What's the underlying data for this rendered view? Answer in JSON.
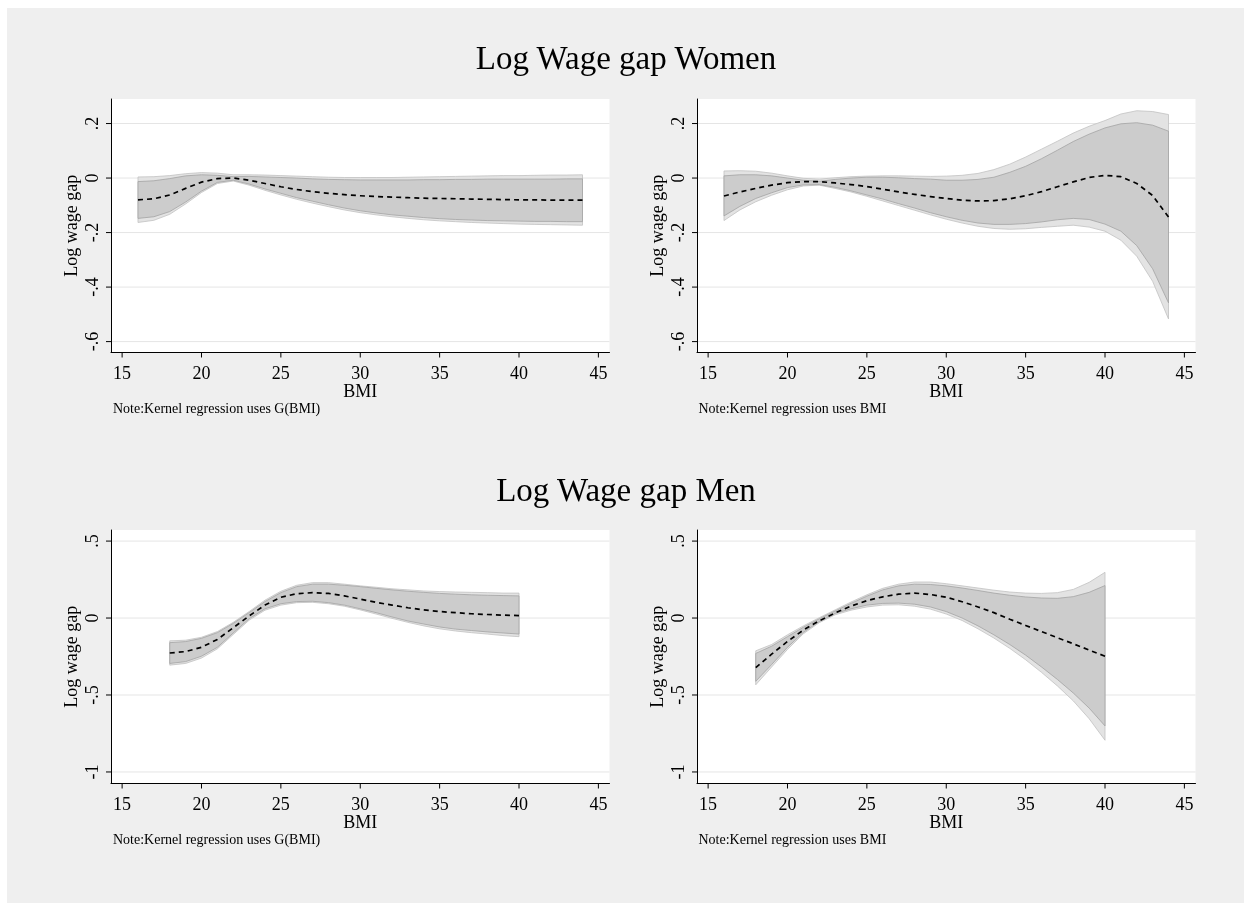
{
  "chart_data": [
    {
      "type": "line",
      "title": "Log Wage gap Women",
      "xlabel": "BMI",
      "ylabel": "Log wage gap",
      "annotations": [
        "Note:Kernel regression uses G(BMI)"
      ],
      "grid": "y",
      "line_style": "dashed",
      "xlim": [
        14.3,
        45.7
      ],
      "xticks": [
        15,
        20,
        25,
        30,
        35,
        40,
        45
      ],
      "ylim": [
        -0.64,
        0.29
      ],
      "yticks": [
        {
          "value": -0.6,
          "label": "-.6"
        },
        {
          "value": -0.4,
          "label": "-.4"
        },
        {
          "value": -0.2,
          "label": "-.2"
        },
        {
          "value": 0,
          "label": "0"
        },
        {
          "value": 0.2,
          "label": ".2"
        }
      ],
      "x": [
        16,
        17,
        18,
        19,
        20,
        21,
        22,
        23,
        24,
        25,
        26,
        27,
        28,
        29,
        30,
        31,
        32,
        33,
        34,
        35,
        36,
        37,
        38,
        39,
        40,
        41,
        42,
        43,
        44
      ],
      "series": [
        {
          "color": "#000000",
          "values": [
            -0.08,
            -0.076,
            -0.062,
            -0.038,
            -0.015,
            -0.002,
            0.0,
            -0.008,
            -0.02,
            -0.032,
            -0.042,
            -0.05,
            -0.056,
            -0.061,
            -0.065,
            -0.068,
            -0.07,
            -0.072,
            -0.074,
            -0.075,
            -0.076,
            -0.077,
            -0.078,
            -0.079,
            -0.08,
            -0.08,
            -0.081,
            -0.081,
            -0.081
          ],
          "lower": [
            -0.163,
            -0.155,
            -0.133,
            -0.095,
            -0.053,
            -0.02,
            -0.011,
            -0.026,
            -0.045,
            -0.062,
            -0.078,
            -0.092,
            -0.105,
            -0.117,
            -0.127,
            -0.135,
            -0.142,
            -0.148,
            -0.153,
            -0.157,
            -0.16,
            -0.163,
            -0.165,
            -0.167,
            -0.169,
            -0.17,
            -0.171,
            -0.172,
            -0.173
          ],
          "upper": [
            0.004,
            0.005,
            0.009,
            0.016,
            0.02,
            0.018,
            0.012,
            0.012,
            0.011,
            0.009,
            0.007,
            0.005,
            0.003,
            0.002,
            0.002,
            0.002,
            0.002,
            0.003,
            0.004,
            0.005,
            0.006,
            0.007,
            0.008,
            0.009,
            0.009,
            0.01,
            0.011,
            0.011,
            0.012
          ]
        },
        {
          "color": "#cccccc",
          "values": [
            null,
            null,
            null,
            null,
            null,
            null,
            null,
            null,
            null,
            null,
            null,
            null,
            null,
            null,
            null,
            null,
            null,
            null,
            null,
            null,
            null,
            null,
            null,
            null,
            null,
            null,
            null,
            null,
            null
          ],
          "lower": [
            -0.148,
            -0.142,
            -0.123,
            -0.088,
            -0.048,
            -0.016,
            -0.008,
            -0.022,
            -0.04,
            -0.056,
            -0.072,
            -0.085,
            -0.098,
            -0.11,
            -0.12,
            -0.128,
            -0.135,
            -0.14,
            -0.145,
            -0.149,
            -0.152,
            -0.154,
            -0.156,
            -0.157,
            -0.158,
            -0.159,
            -0.159,
            -0.16,
            -0.16
          ],
          "upper": [
            -0.013,
            -0.01,
            -0.002,
            0.008,
            0.012,
            0.01,
            0.005,
            0.006,
            0.004,
            0.002,
            0.0,
            -0.003,
            -0.005,
            -0.006,
            -0.007,
            -0.007,
            -0.007,
            -0.007,
            -0.006,
            -0.006,
            -0.005,
            -0.005,
            -0.004,
            -0.004,
            -0.004,
            -0.004,
            -0.004,
            -0.003,
            -0.003
          ]
        }
      ]
    },
    {
      "type": "line",
      "xlabel": "BMI",
      "ylabel": "Log wage gap",
      "annotations": [
        "Note:Kernel regression uses BMI"
      ],
      "grid": "y",
      "line_style": "dashed",
      "xlim": [
        14.3,
        45.7
      ],
      "xticks": [
        15,
        20,
        25,
        30,
        35,
        40,
        45
      ],
      "ylim": [
        -0.64,
        0.29
      ],
      "yticks": [
        {
          "value": -0.6,
          "label": "-.6"
        },
        {
          "value": -0.4,
          "label": "-.4"
        },
        {
          "value": -0.2,
          "label": "-.2"
        },
        {
          "value": 0,
          "label": "0"
        },
        {
          "value": 0.2,
          "label": ".2"
        }
      ],
      "x": [
        16,
        17,
        18,
        19,
        20,
        21,
        22,
        23,
        24,
        25,
        26,
        27,
        28,
        29,
        30,
        31,
        32,
        33,
        34,
        35,
        36,
        37,
        38,
        39,
        40,
        41,
        42,
        43,
        44
      ],
      "series": [
        {
          "color": "#000000",
          "values": [
            -0.066,
            -0.051,
            -0.038,
            -0.026,
            -0.017,
            -0.013,
            -0.013,
            -0.018,
            -0.024,
            -0.031,
            -0.041,
            -0.051,
            -0.06,
            -0.068,
            -0.075,
            -0.081,
            -0.084,
            -0.083,
            -0.076,
            -0.065,
            -0.05,
            -0.032,
            -0.014,
            0.002,
            0.01,
            0.005,
            -0.02,
            -0.064,
            -0.143
          ],
          "lower": [
            -0.156,
            -0.117,
            -0.087,
            -0.063,
            -0.043,
            -0.029,
            -0.026,
            -0.038,
            -0.051,
            -0.067,
            -0.084,
            -0.101,
            -0.118,
            -0.135,
            -0.151,
            -0.165,
            -0.177,
            -0.185,
            -0.188,
            -0.186,
            -0.181,
            -0.177,
            -0.173,
            -0.18,
            -0.195,
            -0.228,
            -0.287,
            -0.379,
            -0.517
          ],
          "upper": [
            0.026,
            0.027,
            0.025,
            0.018,
            0.008,
            -0.001,
            -0.004,
            0.001,
            0.005,
            0.007,
            0.008,
            0.008,
            0.007,
            0.006,
            0.007,
            0.01,
            0.017,
            0.031,
            0.051,
            0.077,
            0.106,
            0.135,
            0.165,
            0.19,
            0.211,
            0.235,
            0.247,
            0.244,
            0.233
          ]
        },
        {
          "color": "#cccccc",
          "values": [
            null,
            null,
            null,
            null,
            null,
            null,
            null,
            null,
            null,
            null,
            null,
            null,
            null,
            null,
            null,
            null,
            null,
            null,
            null,
            null,
            null,
            null,
            null,
            null,
            null,
            null,
            null,
            null,
            null
          ],
          "lower": [
            -0.139,
            -0.104,
            -0.075,
            -0.054,
            -0.035,
            -0.025,
            -0.024,
            -0.034,
            -0.047,
            -0.062,
            -0.077,
            -0.094,
            -0.11,
            -0.127,
            -0.142,
            -0.155,
            -0.165,
            -0.17,
            -0.17,
            -0.167,
            -0.161,
            -0.153,
            -0.148,
            -0.152,
            -0.169,
            -0.195,
            -0.248,
            -0.333,
            -0.458
          ],
          "upper": [
            0.008,
            0.012,
            0.012,
            0.008,
            0.0,
            -0.008,
            -0.012,
            -0.005,
            0.0,
            0.003,
            0.003,
            0.001,
            -0.002,
            -0.004,
            -0.008,
            -0.008,
            -0.005,
            0.003,
            0.021,
            0.043,
            0.071,
            0.102,
            0.134,
            0.161,
            0.184,
            0.199,
            0.203,
            0.194,
            0.172
          ]
        }
      ]
    },
    {
      "type": "line",
      "title": "Log Wage gap Men",
      "xlabel": "BMI",
      "ylabel": "Log wage gap",
      "annotations": [
        "Note:Kernel regression uses G(BMI)"
      ],
      "grid": "y",
      "line_style": "dashed",
      "xlim": [
        14.3,
        45.7
      ],
      "xticks": [
        15,
        20,
        25,
        30,
        35,
        40,
        45
      ],
      "ylim": [
        -1.075,
        0.572
      ],
      "yticks": [
        -1,
        {
          "value": -0.5,
          "label": "-.5"
        },
        {
          "value": 0,
          "label": "0"
        },
        {
          "value": 0.5,
          "label": ".5"
        }
      ],
      "x": [
        18,
        19,
        20,
        21,
        22,
        23,
        24,
        25,
        26,
        27,
        28,
        29,
        30,
        31,
        32,
        33,
        34,
        35,
        36,
        37,
        38,
        39,
        40
      ],
      "series": [
        {
          "color": "#000000",
          "values": [
            -0.227,
            -0.218,
            -0.19,
            -0.139,
            -0.063,
            0.014,
            0.084,
            0.135,
            0.158,
            0.165,
            0.16,
            0.144,
            0.123,
            0.102,
            0.084,
            0.067,
            0.053,
            0.042,
            0.035,
            0.028,
            0.023,
            0.019,
            0.016
          ],
          "lower": [
            -0.306,
            -0.295,
            -0.26,
            -0.2,
            -0.107,
            -0.014,
            0.051,
            0.084,
            0.1,
            0.102,
            0.093,
            0.077,
            0.053,
            0.026,
            -0.002,
            -0.028,
            -0.051,
            -0.07,
            -0.084,
            -0.095,
            -0.104,
            -0.114,
            -0.121
          ],
          "upper": [
            -0.148,
            -0.144,
            -0.125,
            -0.088,
            -0.028,
            0.042,
            0.116,
            0.174,
            0.213,
            0.23,
            0.23,
            0.22,
            0.209,
            0.2,
            0.19,
            0.183,
            0.176,
            0.172,
            0.169,
            0.167,
            0.165,
            0.162,
            0.162
          ]
        },
        {
          "color": "#cccccc",
          "values": [
            null,
            null,
            null,
            null,
            null,
            null,
            null,
            null,
            null,
            null,
            null,
            null,
            null,
            null,
            null,
            null,
            null,
            null,
            null,
            null,
            null,
            null,
            null
          ],
          "lower": [
            -0.295,
            -0.283,
            -0.248,
            -0.19,
            -0.097,
            -0.005,
            0.06,
            0.093,
            0.107,
            0.109,
            0.1,
            0.084,
            0.06,
            0.035,
            0.007,
            -0.019,
            -0.039,
            -0.058,
            -0.072,
            -0.081,
            -0.09,
            -0.097,
            -0.104
          ],
          "upper": [
            -0.16,
            -0.153,
            -0.132,
            -0.095,
            -0.035,
            0.035,
            0.107,
            0.165,
            0.204,
            0.22,
            0.22,
            0.213,
            0.204,
            0.193,
            0.183,
            0.174,
            0.167,
            0.16,
            0.155,
            0.151,
            0.148,
            0.146,
            0.144
          ]
        }
      ]
    },
    {
      "type": "line",
      "xlabel": "BMI",
      "ylabel": "Log wage gap",
      "annotations": [
        "Note:Kernel regression uses BMI"
      ],
      "grid": "y",
      "line_style": "dashed",
      "xlim": [
        14.3,
        45.7
      ],
      "xticks": [
        15,
        20,
        25,
        30,
        35,
        40,
        45
      ],
      "ylim": [
        -1.075,
        0.572
      ],
      "yticks": [
        -1,
        {
          "value": -0.5,
          "label": "-.5"
        },
        {
          "value": 0,
          "label": "0"
        },
        {
          "value": 0.5,
          "label": ".5"
        }
      ],
      "x": [
        18,
        19,
        20,
        21,
        22,
        23,
        24,
        25,
        26,
        27,
        28,
        29,
        30,
        31,
        32,
        33,
        34,
        35,
        36,
        37,
        38,
        39,
        40
      ],
      "series": [
        {
          "color": "#000000",
          "values": [
            -0.322,
            -0.235,
            -0.152,
            -0.078,
            -0.018,
            0.033,
            0.078,
            0.113,
            0.138,
            0.155,
            0.162,
            0.153,
            0.135,
            0.106,
            0.072,
            0.035,
            -0.008,
            -0.048,
            -0.088,
            -0.128,
            -0.167,
            -0.208,
            -0.248
          ],
          "lower": [
            -0.434,
            -0.318,
            -0.204,
            -0.102,
            -0.03,
            0.021,
            0.051,
            0.072,
            0.084,
            0.086,
            0.077,
            0.058,
            0.026,
            -0.016,
            -0.07,
            -0.13,
            -0.197,
            -0.271,
            -0.353,
            -0.441,
            -0.538,
            -0.654,
            -0.794
          ],
          "upper": [
            -0.213,
            -0.172,
            -0.109,
            -0.051,
            0.002,
            0.053,
            0.104,
            0.151,
            0.193,
            0.22,
            0.234,
            0.234,
            0.223,
            0.209,
            0.195,
            0.181,
            0.169,
            0.162,
            0.16,
            0.165,
            0.186,
            0.232,
            0.297
          ]
        },
        {
          "color": "#cccccc",
          "values": [
            null,
            null,
            null,
            null,
            null,
            null,
            null,
            null,
            null,
            null,
            null,
            null,
            null,
            null,
            null,
            null,
            null,
            null,
            null,
            null,
            null,
            null,
            null
          ],
          "lower": [
            -0.411,
            -0.302,
            -0.19,
            -0.093,
            -0.023,
            0.03,
            0.06,
            0.084,
            0.095,
            0.097,
            0.09,
            0.072,
            0.042,
            0.0,
            -0.051,
            -0.109,
            -0.172,
            -0.241,
            -0.318,
            -0.399,
            -0.487,
            -0.585,
            -0.701
          ],
          "upper": [
            -0.23,
            -0.183,
            -0.121,
            -0.06,
            -0.005,
            0.046,
            0.095,
            0.142,
            0.183,
            0.209,
            0.22,
            0.218,
            0.209,
            0.195,
            0.179,
            0.162,
            0.148,
            0.137,
            0.13,
            0.128,
            0.139,
            0.167,
            0.211
          ]
        }
      ]
    }
  ]
}
